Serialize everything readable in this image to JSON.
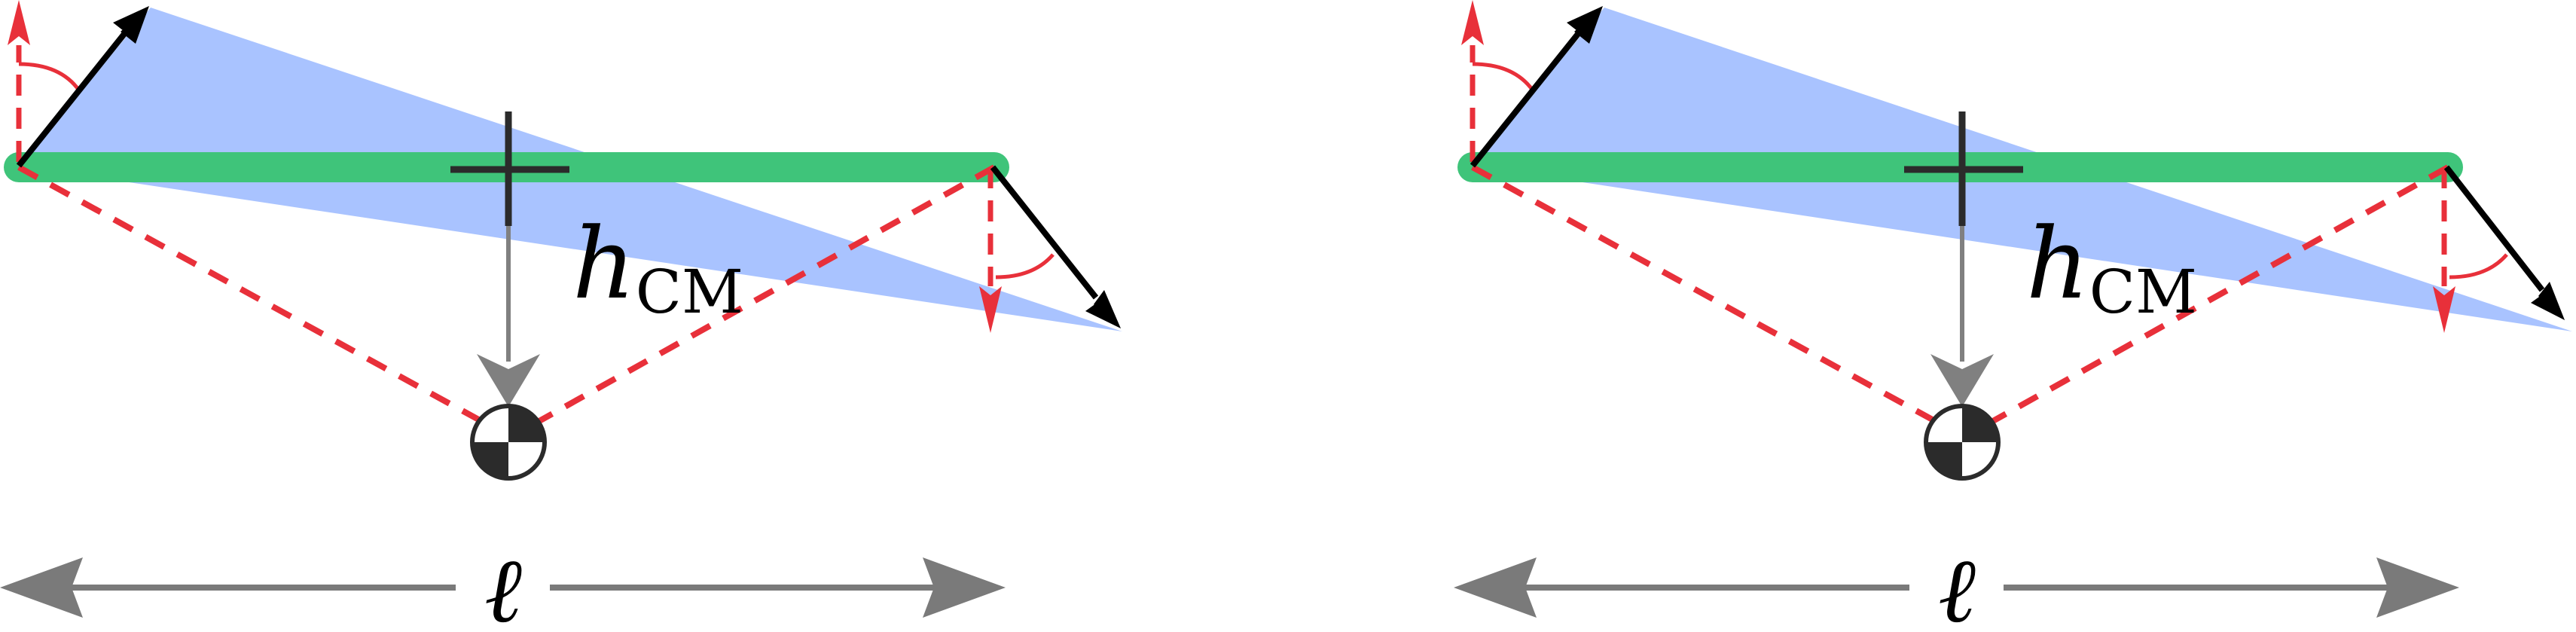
{
  "labels": {
    "height_symbol": "h",
    "height_subscript": "CM",
    "length_symbol": "ℓ"
  },
  "colors": {
    "beam": "#3fc47a",
    "triangle_fill": "#a9c3ff",
    "force_arrow": "#000000",
    "reference_dash": "#e8303a",
    "center_of_mass_arrow": "#808080",
    "length_arrow": "#7a7a7a",
    "center_of_mass_marker": "#2b2b2b"
  },
  "icons": {
    "center_of_mass": "center-of-mass-symbol",
    "pivot_cross": "cross-marker"
  }
}
